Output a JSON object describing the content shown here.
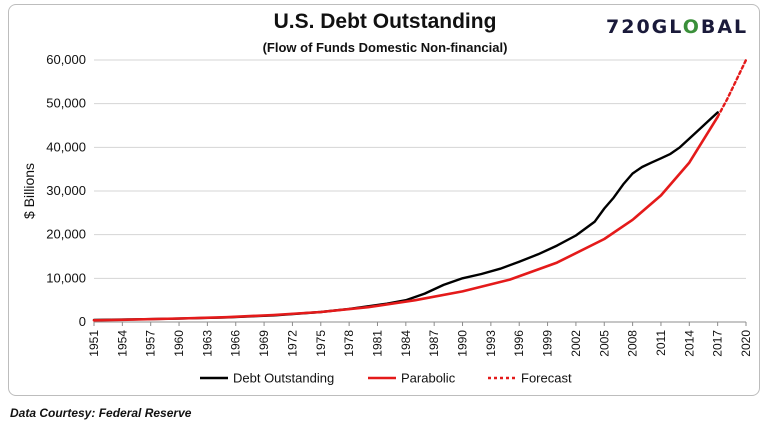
{
  "header": {
    "title": "U.S. Debt Outstanding",
    "subtitle": "(Flow of Funds Domestic Non-financial)",
    "logo_main": "720GL",
    "logo_accent": "O",
    "logo_end": "BAL"
  },
  "footnote": "Data Courtesy: Federal Reserve",
  "chart_data": {
    "type": "line",
    "title": "U.S. Debt Outstanding",
    "subtitle": "(Flow of Funds Domestic Non-financial)",
    "xlabel": "",
    "ylabel": "$ Billions",
    "xlim": [
      1951,
      2020
    ],
    "ylim": [
      0,
      60000
    ],
    "yticks": [
      0,
      10000,
      20000,
      30000,
      40000,
      50000,
      60000
    ],
    "ytick_labels": [
      "0",
      "10,000",
      "20,000",
      "30,000",
      "40,000",
      "50,000",
      "60,000"
    ],
    "xticks": [
      1951,
      1954,
      1957,
      1960,
      1963,
      1966,
      1969,
      1972,
      1975,
      1978,
      1981,
      1984,
      1987,
      1990,
      1993,
      1996,
      1999,
      2002,
      2005,
      2008,
      2011,
      2014,
      2017,
      2020
    ],
    "grid": "horizontal",
    "legend_position": "bottom",
    "series": [
      {
        "name": "Debt Outstanding",
        "color": "#000000",
        "style": "solid",
        "x": [
          1951,
          1955,
          1960,
          1965,
          1970,
          1975,
          1978,
          1980,
          1982,
          1984,
          1986,
          1988,
          1990,
          1992,
          1994,
          1996,
          1998,
          2000,
          2002,
          2004,
          2005,
          2006,
          2007,
          2008,
          2009,
          2010,
          2011,
          2012,
          2013,
          2014,
          2015,
          2016,
          2017
        ],
        "y": [
          450,
          600,
          780,
          1050,
          1500,
          2300,
          3000,
          3600,
          4200,
          5000,
          6500,
          8500,
          10000,
          11000,
          12200,
          13800,
          15500,
          17500,
          19800,
          23000,
          26000,
          28500,
          31500,
          34000,
          35500,
          36500,
          37500,
          38500,
          40000,
          42000,
          44000,
          46000,
          48000
        ]
      },
      {
        "name": "Parabolic",
        "color": "#e41a1a",
        "style": "solid",
        "x": [
          1951,
          1955,
          1960,
          1965,
          1970,
          1975,
          1980,
          1985,
          1990,
          1995,
          2000,
          2005,
          2008,
          2011,
          2014,
          2017
        ],
        "y": [
          400,
          550,
          800,
          1100,
          1600,
          2300,
          3400,
          5000,
          7000,
          9700,
          13600,
          19000,
          23400,
          29000,
          36500,
          47000
        ]
      },
      {
        "name": "Forecast",
        "color": "#e41a1a",
        "style": "dashed",
        "x": [
          2017,
          2018,
          2019,
          2020
        ],
        "y": [
          47000,
          51000,
          55500,
          60000
        ]
      }
    ]
  }
}
